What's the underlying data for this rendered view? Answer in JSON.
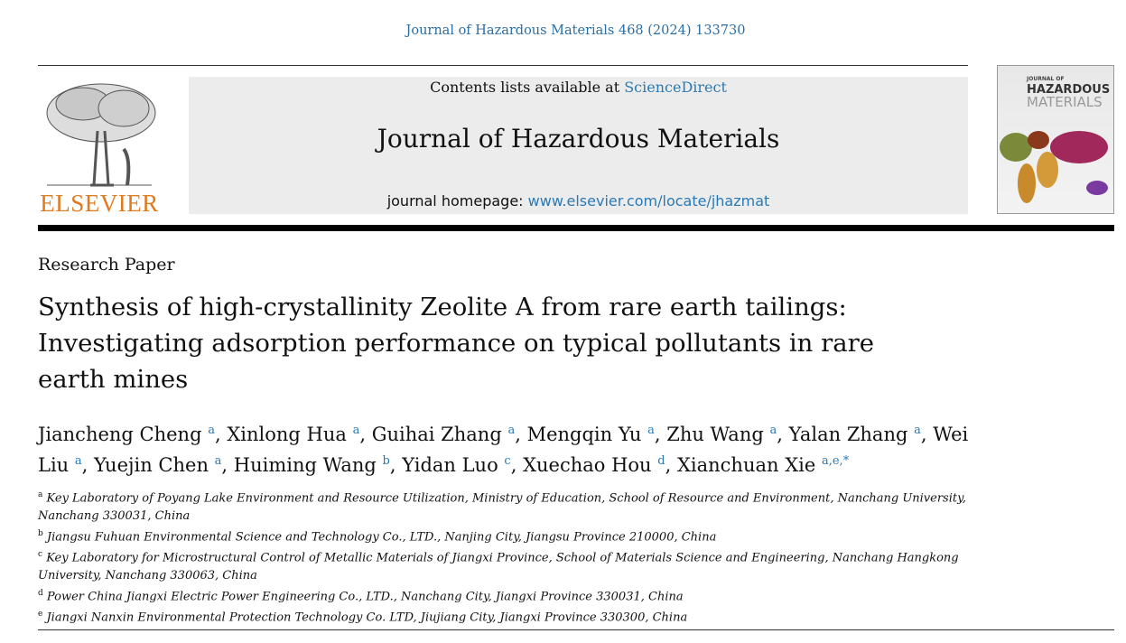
{
  "citation": "Journal of Hazardous Materials 468 (2024) 133730",
  "publisher": "ELSEVIER",
  "banner": {
    "contents_prefix": "Contents lists available at ",
    "contents_link": "ScienceDirect",
    "journal_title": "Journal of Hazardous Materials",
    "homepage_prefix": "journal homepage: ",
    "homepage_link": "www.elsevier.com/locate/jhazmat"
  },
  "cover": {
    "line1": "JOURNAL OF",
    "line2": "HAZARDOUS",
    "line3": "MATERIALS"
  },
  "article_type": "Research Paper",
  "title": "Synthesis of high-crystallinity Zeolite A from rare earth tailings: Investigating adsorption performance on typical pollutants in rare earth mines",
  "authors": [
    {
      "name": "Jiancheng Cheng",
      "aff": "a"
    },
    {
      "name": "Xinlong Hua",
      "aff": "a"
    },
    {
      "name": "Guihai Zhang",
      "aff": "a"
    },
    {
      "name": "Mengqin Yu",
      "aff": "a"
    },
    {
      "name": "Zhu Wang",
      "aff": "a"
    },
    {
      "name": "Yalan Zhang",
      "aff": "a"
    },
    {
      "name": "Wei Liu",
      "aff": "a"
    },
    {
      "name": "Yuejin Chen",
      "aff": "a"
    },
    {
      "name": "Huiming Wang",
      "aff": "b"
    },
    {
      "name": "Yidan Luo",
      "aff": "c"
    },
    {
      "name": "Xuechao Hou",
      "aff": "d"
    },
    {
      "name": "Xianchuan Xie",
      "aff": "a,e,*"
    }
  ],
  "affiliations": [
    {
      "label": "a",
      "text": "Key Laboratory of Poyang Lake Environment and Resource Utilization, Ministry of Education, School of Resource and Environment, Nanchang University, Nanchang 330031, China"
    },
    {
      "label": "b",
      "text": "Jiangsu Fuhuan Environmental Science and Technology Co., LTD., Nanjing City, Jiangsu Province 210000, China"
    },
    {
      "label": "c",
      "text": "Key Laboratory for Microstructural Control of Metallic Materials of Jiangxi Province, School of Materials Science and Engineering, Nanchang Hangkong University, Nanchang 330063, China"
    },
    {
      "label": "d",
      "text": "Power China Jiangxi Electric Power Engineering Co., LTD., Nanchang City, Jiangxi Province 330031, China"
    },
    {
      "label": "e",
      "text": "Jiangxi Nanxin Environmental Protection Technology Co. LTD, Jiujiang City, Jiangxi Province 330300, China"
    }
  ]
}
